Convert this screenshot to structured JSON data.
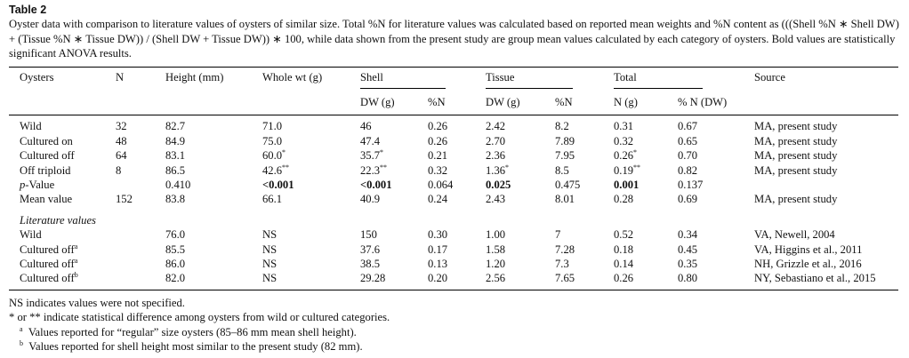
{
  "title": "Table 2",
  "caption": "Oyster data with comparison to literature values of oysters of similar size. Total %N for literature values was calculated based on reported mean weights and %N content as (((Shell %N ∗ Shell DW) + (Tissue %N ∗ Tissue DW)) / (Shell DW + Tissue DW)) ∗ 100, while data shown from the present study are group mean values calculated by each category of oysters. Bold values are statistically significant ANOVA results.",
  "header": {
    "columns": [
      "Oysters",
      "N",
      "Height (mm)",
      "Whole wt (g)"
    ],
    "groups": [
      {
        "label": "Shell",
        "sub": [
          "DW (g)",
          "%N"
        ]
      },
      {
        "label": "Tissue",
        "sub": [
          "DW (g)",
          "%N"
        ]
      },
      {
        "label": "Total",
        "sub": [
          "N (g)",
          "% N (DW)"
        ]
      }
    ],
    "source": "Source"
  },
  "present_study": [
    [
      "Wild",
      "32",
      "82.7",
      "71.0",
      "46",
      "0.26",
      "2.42",
      "8.2",
      "0.31",
      "0.67",
      "MA, present study"
    ],
    [
      "Cultured on",
      "48",
      "84.9",
      "75.0",
      "47.4",
      "0.26",
      "2.70",
      "7.89",
      "0.32",
      "0.65",
      "MA, present study"
    ],
    [
      "Cultured off",
      "64",
      "83.1",
      {
        "text": "60.0",
        "sup": "*"
      },
      {
        "text": "35.7",
        "sup": "*"
      },
      "0.21",
      "2.36",
      "7.95",
      {
        "text": "0.26",
        "sup": "*"
      },
      "0.70",
      "MA, present study"
    ],
    [
      "Off triploid",
      "8",
      "86.5",
      {
        "text": "42.6",
        "sup": "**"
      },
      {
        "text": "22.3",
        "sup": "**"
      },
      "0.32",
      {
        "text": "1.36",
        "sup": "*"
      },
      "8.5",
      {
        "text": "0.19",
        "sup": "**"
      },
      "0.82",
      "MA, present study"
    ],
    [
      {
        "em": "p",
        "text": "-Value"
      },
      null,
      "0.410",
      {
        "text": "<0.001",
        "bold": true
      },
      {
        "text": "<0.001",
        "bold": true
      },
      "0.064",
      {
        "text": "0.025",
        "bold": true
      },
      "0.475",
      {
        "text": "0.001",
        "bold": true
      },
      "0.137",
      null
    ],
    [
      "Mean value",
      "152",
      "83.8",
      "66.1",
      "40.9",
      "0.24",
      "2.43",
      "8.01",
      "0.28",
      "0.69",
      "MA, present study"
    ]
  ],
  "literature": {
    "label": "Literature values",
    "rows": [
      [
        "Wild",
        null,
        "76.0",
        "NS",
        "150",
        "0.30",
        "1.00",
        "7",
        "0.52",
        "0.34",
        "VA, Newell, 2004"
      ],
      [
        {
          "text": "Cultured off",
          "sup": "a"
        },
        null,
        "85.5",
        "NS",
        "37.6",
        "0.17",
        "1.58",
        "7.28",
        "0.18",
        "0.45",
        "VA, Higgins et al., 2011"
      ],
      [
        {
          "text": "Cultured off",
          "sup": "a"
        },
        null,
        "86.0",
        "NS",
        "38.5",
        "0.13",
        "1.20",
        "7.3",
        "0.14",
        "0.35",
        "NH, Grizzle et al., 2016"
      ],
      [
        {
          "text": "Cultured off",
          "sup": "b"
        },
        null,
        "82.0",
        "NS",
        "29.28",
        "0.20",
        "2.56",
        "7.65",
        "0.26",
        "0.80",
        "NY, Sebastiano et al., 2015"
      ]
    ]
  },
  "footnotes": [
    {
      "text": "NS indicates values were not specified."
    },
    {
      "text": "* or ** indicate statistical difference among oysters from wild or cultured categories."
    },
    {
      "sup": "a",
      "text": "Values reported for “regular” size oysters (85–86 mm mean shell height)."
    },
    {
      "sup": "b",
      "text": "Values reported for shell height most similar to the present study (82 mm)."
    }
  ]
}
